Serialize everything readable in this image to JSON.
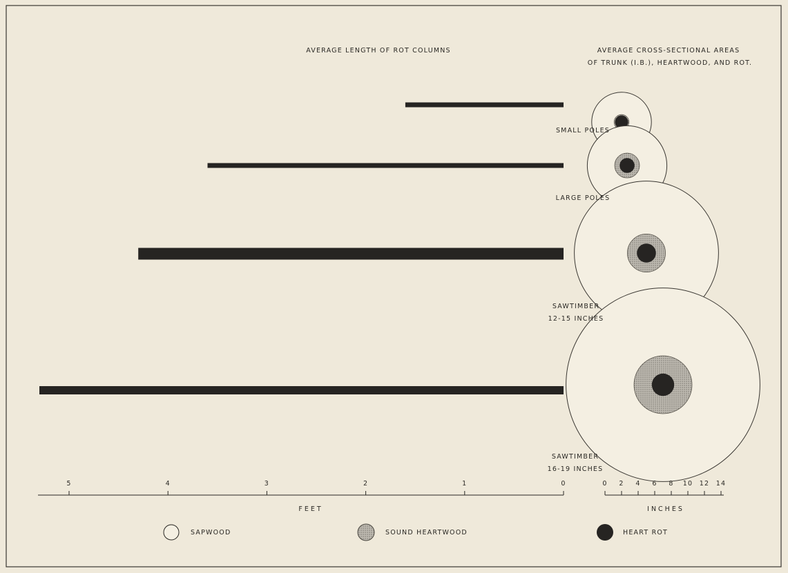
{
  "colors": {
    "background": "#efe9da",
    "rot": "#262422",
    "sound_heartwood": "#a8a59e",
    "sapwood": "#f4efe2",
    "ink": "#2a2824"
  },
  "chart_data": [
    {
      "type": "bar",
      "orientation": "horizontal",
      "title": "AVERAGE LENGTH OF ROT COLUMNS",
      "categories": [
        "SMALL POLES",
        "LARGE POLES",
        "SAWTIMBER 12-15 INCHES",
        "SAWTIMBER 16-19 INCHES"
      ],
      "values": [
        1.6,
        3.6,
        4.3,
        5.3
      ],
      "xlabel": "FEET",
      "x_ticks": [
        "5",
        "4",
        "3",
        "2",
        "1",
        "0"
      ],
      "xlim": [
        0,
        5.3
      ],
      "x_reversed": true
    },
    {
      "type": "concentric_circles",
      "title": "AVERAGE CROSS-SECTIONAL AREAS OF TRUNK (I.B.), HEARTWOOD, AND ROT.",
      "categories": [
        "SMALL POLES",
        "LARGE POLES",
        "SAWTIMBER 12-15 INCHES",
        "SAWTIMBER 16-19 INCHES"
      ],
      "series": [
        {
          "name": "SAPWOOD",
          "values": [
            7.2,
            9.6,
            17.4,
            23.4
          ]
        },
        {
          "name": "SOUND HEARTWOOD",
          "values": [
            1.8,
            3.0,
            4.6,
            7.0
          ]
        },
        {
          "name": "HEART ROT",
          "values": [
            1.6,
            1.8,
            2.3,
            2.7
          ]
        }
      ],
      "unit": "INCHES",
      "scale_ticks": [
        "0",
        "2",
        "4",
        "6",
        "8",
        "10",
        "12",
        "14"
      ]
    }
  ],
  "labels": {
    "left_title": "AVERAGE LENGTH OF ROT COLUMNS",
    "right_title_1": "AVERAGE CROSS-SECTIONAL AREAS",
    "right_title_2": "OF TRUNK (I.B.), HEARTWOOD, AND ROT.",
    "cat_small": "SMALL POLES",
    "cat_large": "LARGE POLES",
    "cat_saw1_a": "SAWTIMBER",
    "cat_saw1_b": "12-15 INCHES",
    "cat_saw2_a": "SAWTIMBER",
    "cat_saw2_b": "16-19 INCHES",
    "feet": "FEET",
    "inches": "INCHES"
  },
  "legend": [
    {
      "label": "SAPWOOD",
      "kind": "sapwood"
    },
    {
      "label": "SOUND HEARTWOOD",
      "kind": "heartwood"
    },
    {
      "label": "HEART ROT",
      "kind": "rot"
    }
  ]
}
